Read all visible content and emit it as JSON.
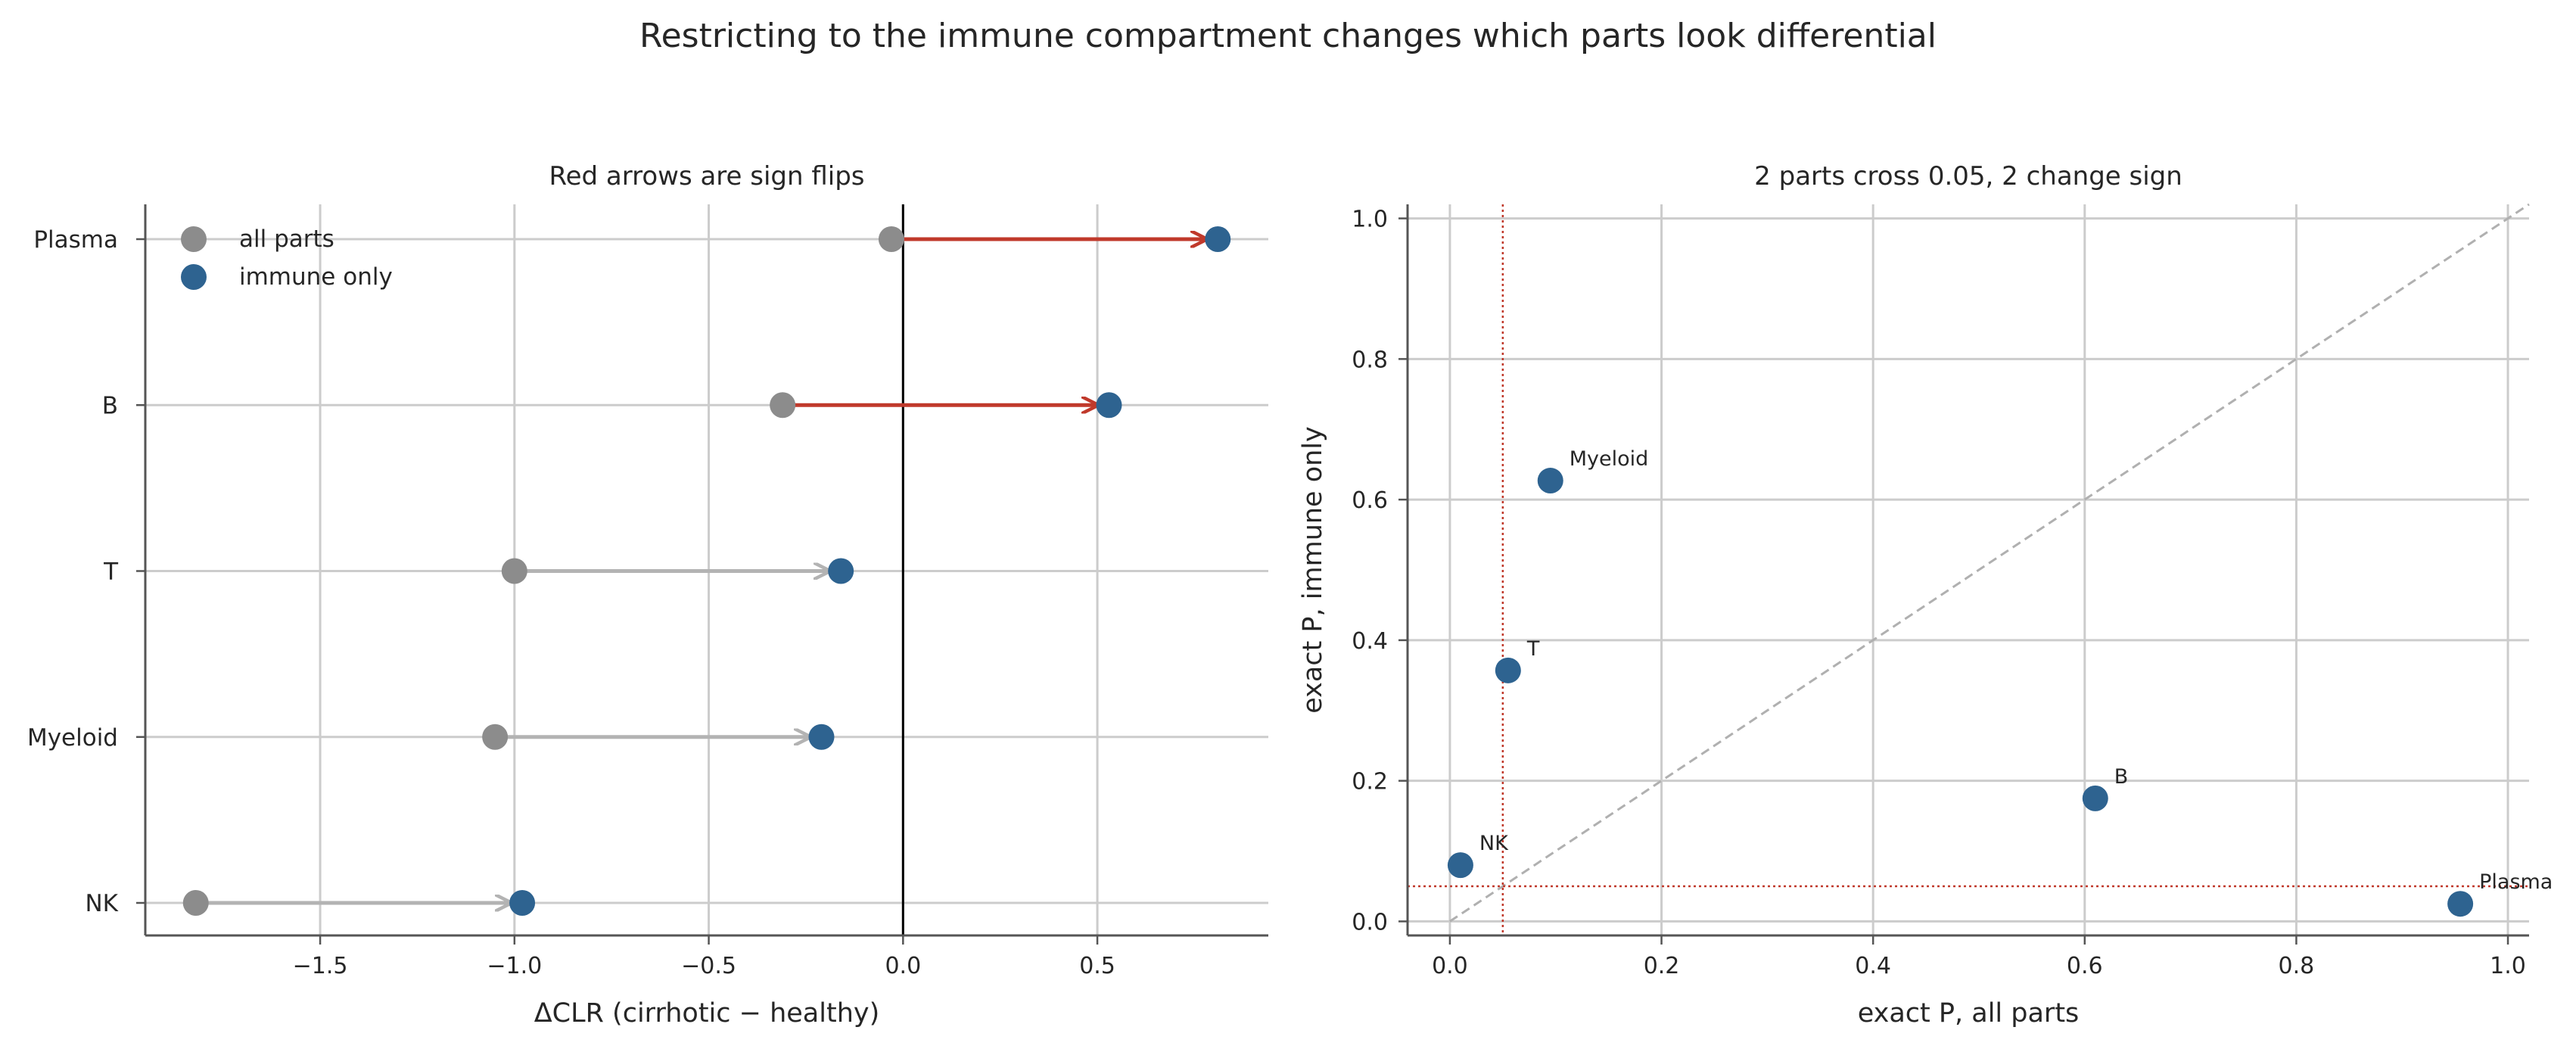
{
  "figure": {
    "suptitle": "Restricting to the immune compartment changes which parts look differential"
  },
  "colors": {
    "all_parts": "#8c8c8c",
    "immune_only": "#2e6390",
    "sign_flip": "#c0392b",
    "no_flip": "#b3b3b3",
    "grid": "#cccccc",
    "threshold": "#c0392b",
    "diagonal": "#b0b0b0"
  },
  "chart_data": [
    {
      "type": "dumbbell",
      "title": "Red arrows are sign flips",
      "xlabel": "ΔCLR (cirrhotic − healthy)",
      "ylabel": "",
      "xlim": [
        -1.95,
        0.94
      ],
      "xticks": [
        -1.5,
        -1.0,
        -0.5,
        0.0,
        0.5
      ],
      "xtick_labels": [
        "−1.5",
        "−1.0",
        "−0.5",
        "0.0",
        "0.5"
      ],
      "categories": [
        "Plasma",
        "B",
        "T",
        "Myeloid",
        "NK"
      ],
      "series": [
        {
          "name": "all parts",
          "values": [
            -0.03,
            -0.31,
            -1.0,
            -1.05,
            -1.82
          ]
        },
        {
          "name": "immune only",
          "values": [
            0.81,
            0.53,
            -0.16,
            -0.21,
            -0.98
          ]
        }
      ],
      "sign_flip": [
        true,
        true,
        false,
        false,
        false
      ],
      "zero_line": 0,
      "legend": {
        "position": "top-left",
        "entries": [
          "all parts",
          "immune only"
        ]
      },
      "grid": true
    },
    {
      "type": "scatter",
      "title": "2 parts cross 0.05, 2 change sign",
      "xlabel": "exact P, all parts",
      "ylabel": "exact P, immune only",
      "xlim": [
        -0.04,
        1.02
      ],
      "ylim": [
        -0.02,
        1.02
      ],
      "xticks": [
        0.0,
        0.2,
        0.4,
        0.6,
        0.8,
        1.0
      ],
      "yticks": [
        0.0,
        0.2,
        0.4,
        0.6,
        0.8,
        1.0
      ],
      "tick_labels": [
        "0.0",
        "0.2",
        "0.4",
        "0.6",
        "0.8",
        "1.0"
      ],
      "points": [
        {
          "label": "Myeloid",
          "x": 0.095,
          "y": 0.627
        },
        {
          "label": "T",
          "x": 0.055,
          "y": 0.357
        },
        {
          "label": "B",
          "x": 0.61,
          "y": 0.175
        },
        {
          "label": "NK",
          "x": 0.01,
          "y": 0.08
        },
        {
          "label": "Plasma",
          "x": 0.955,
          "y": 0.025
        }
      ],
      "threshold": 0.05,
      "diagonal": true,
      "grid": true
    }
  ]
}
